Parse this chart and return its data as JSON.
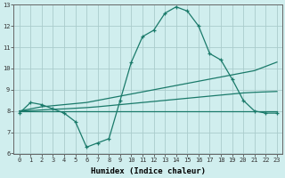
{
  "x": [
    0,
    1,
    2,
    3,
    4,
    5,
    6,
    7,
    8,
    9,
    10,
    11,
    12,
    13,
    14,
    15,
    16,
    17,
    18,
    19,
    20,
    21,
    22,
    23
  ],
  "line_wavy": [
    7.9,
    8.4,
    8.3,
    8.1,
    7.9,
    7.5,
    6.3,
    6.5,
    6.7,
    8.5,
    10.3,
    11.5,
    11.8,
    12.6,
    12.9,
    12.7,
    12.0,
    10.7,
    10.4,
    9.5,
    8.5,
    8.0,
    7.9,
    7.9
  ],
  "line_upper": [
    8.0,
    8.1,
    8.2,
    8.25,
    8.3,
    8.35,
    8.4,
    8.5,
    8.6,
    8.7,
    8.8,
    8.9,
    9.0,
    9.1,
    9.2,
    9.3,
    9.4,
    9.5,
    9.6,
    9.7,
    9.8,
    9.9,
    10.1,
    10.3
  ],
  "line_lower": [
    8.0,
    8.02,
    8.05,
    8.08,
    8.1,
    8.13,
    8.16,
    8.2,
    8.25,
    8.3,
    8.35,
    8.4,
    8.45,
    8.5,
    8.55,
    8.6,
    8.65,
    8.7,
    8.75,
    8.8,
    8.85,
    8.88,
    8.9,
    8.92
  ],
  "line_flat": [
    8.0,
    8.0,
    8.0,
    8.0,
    8.0,
    8.0,
    8.0,
    8.0,
    8.0,
    8.0,
    8.0,
    8.0,
    8.0,
    8.0,
    8.0,
    8.0,
    8.0,
    8.0,
    8.0,
    8.0,
    8.0,
    8.0,
    8.0,
    8.0
  ],
  "line_color": "#1a7a6a",
  "bg_color": "#d0eeee",
  "grid_color": "#aacccc",
  "xlabel": "Humidex (Indice chaleur)",
  "ylim": [
    6,
    13
  ],
  "xlim": [
    -0.5,
    23.5
  ],
  "yticks": [
    6,
    7,
    8,
    9,
    10,
    11,
    12,
    13
  ],
  "xticks": [
    0,
    1,
    2,
    3,
    4,
    5,
    6,
    7,
    8,
    9,
    10,
    11,
    12,
    13,
    14,
    15,
    16,
    17,
    18,
    19,
    20,
    21,
    22,
    23
  ],
  "tick_fontsize": 5.0,
  "xlabel_fontsize": 6.5
}
